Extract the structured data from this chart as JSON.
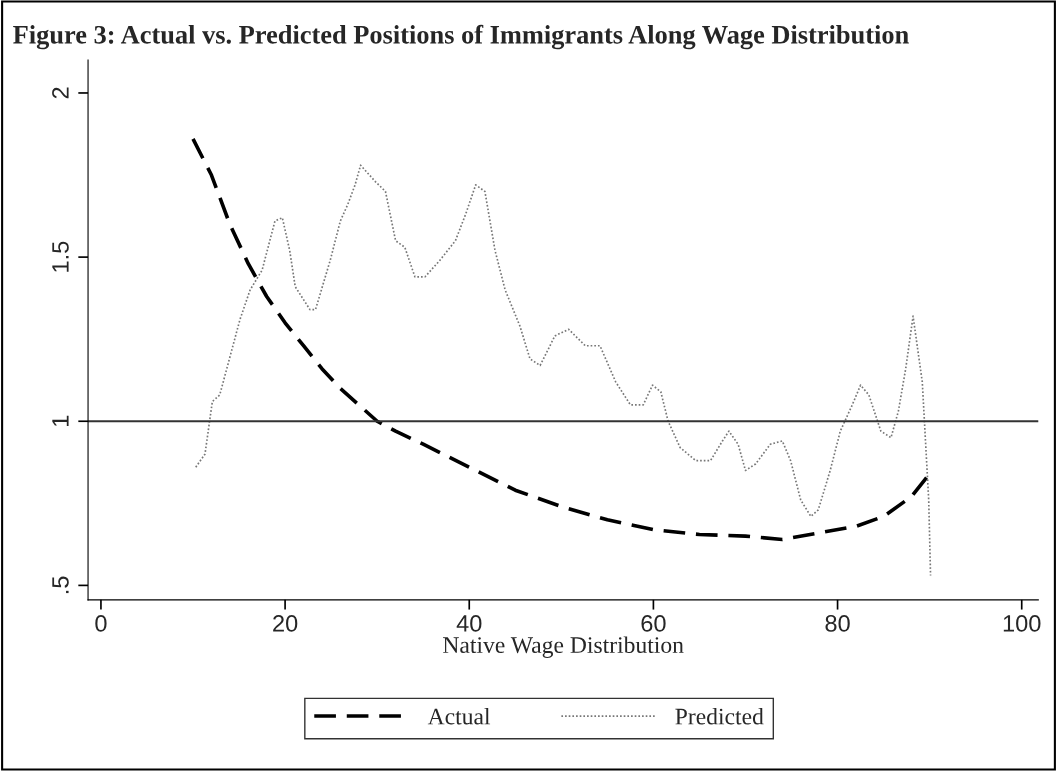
{
  "chart_data": {
    "type": "line",
    "title": "Figure 3: Actual vs. Predicted Positions of Immigrants Along Wage Distribution",
    "xlabel": "Native Wage Distribution",
    "xlim": [
      -1.4,
      101.8
    ],
    "xticks": [
      0,
      20,
      40,
      60,
      80,
      100
    ],
    "ylim": [
      0.456,
      2.1
    ],
    "yticks": [
      {
        "value": 0.5,
        "label": ".5"
      },
      1,
      1.5,
      2
    ],
    "grid": false,
    "legend": "bottom",
    "marker": "none",
    "ref_lines": [
      {
        "axis": "y",
        "value": 1,
        "color": "#333333",
        "line_style": "solid"
      }
    ],
    "series": [
      {
        "name": "Actual",
        "color": "#000000",
        "line_style": "dashed",
        "x": [
          10,
          12,
          14,
          16,
          18,
          20,
          22,
          24,
          26,
          28,
          30,
          32,
          35,
          40,
          45,
          50,
          55,
          60,
          65,
          70,
          74,
          78,
          82,
          85,
          88,
          90
        ],
        "values": [
          1.86,
          1.75,
          1.6,
          1.48,
          1.38,
          1.3,
          1.23,
          1.16,
          1.1,
          1.05,
          1.0,
          0.97,
          0.93,
          0.86,
          0.79,
          0.74,
          0.7,
          0.67,
          0.655,
          0.65,
          0.64,
          0.66,
          0.68,
          0.71,
          0.77,
          0.84
        ]
      },
      {
        "name": "Predicted",
        "color": "#777777",
        "line_style": "dotted",
        "x": [
          10.3,
          11.3,
          12.1,
          12.9,
          15.1,
          16.2,
          17.5,
          18.9,
          19.7,
          20.5,
          21.1,
          22.7,
          23.3,
          24.9,
          26.0,
          26.8,
          27.6,
          28.2,
          29.8,
          30.9,
          32.0,
          33.0,
          34.1,
          35.2,
          36.8,
          38.5,
          39.6,
          40.7,
          41.7,
          42.8,
          43.9,
          45.5,
          46.6,
          47.7,
          49.3,
          50.8,
          52.6,
          54.2,
          55.9,
          57.5,
          58.9,
          59.9,
          60.8,
          61.6,
          62.9,
          64.6,
          66.2,
          67.5,
          68.2,
          69.2,
          70.0,
          71.1,
          72.7,
          74.0,
          74.9,
          76.0,
          77.1,
          77.9,
          79.2,
          80.3,
          81.6,
          82.5,
          83.4,
          84.7,
          85.8,
          86.6,
          87.4,
          88.2,
          89.2,
          89.9,
          90.1
        ],
        "values": [
          0.86,
          0.9,
          1.06,
          1.08,
          1.31,
          1.4,
          1.46,
          1.61,
          1.62,
          1.52,
          1.41,
          1.34,
          1.34,
          1.49,
          1.61,
          1.66,
          1.72,
          1.78,
          1.73,
          1.7,
          1.55,
          1.53,
          1.44,
          1.44,
          1.49,
          1.55,
          1.63,
          1.72,
          1.7,
          1.52,
          1.4,
          1.29,
          1.19,
          1.17,
          1.26,
          1.28,
          1.23,
          1.23,
          1.12,
          1.05,
          1.05,
          1.11,
          1.09,
          1.0,
          0.92,
          0.88,
          0.88,
          0.94,
          0.97,
          0.93,
          0.85,
          0.87,
          0.93,
          0.94,
          0.88,
          0.76,
          0.71,
          0.73,
          0.85,
          0.97,
          1.05,
          1.11,
          1.08,
          0.97,
          0.95,
          1.03,
          1.16,
          1.32,
          1.12,
          0.76,
          0.53
        ]
      }
    ]
  }
}
